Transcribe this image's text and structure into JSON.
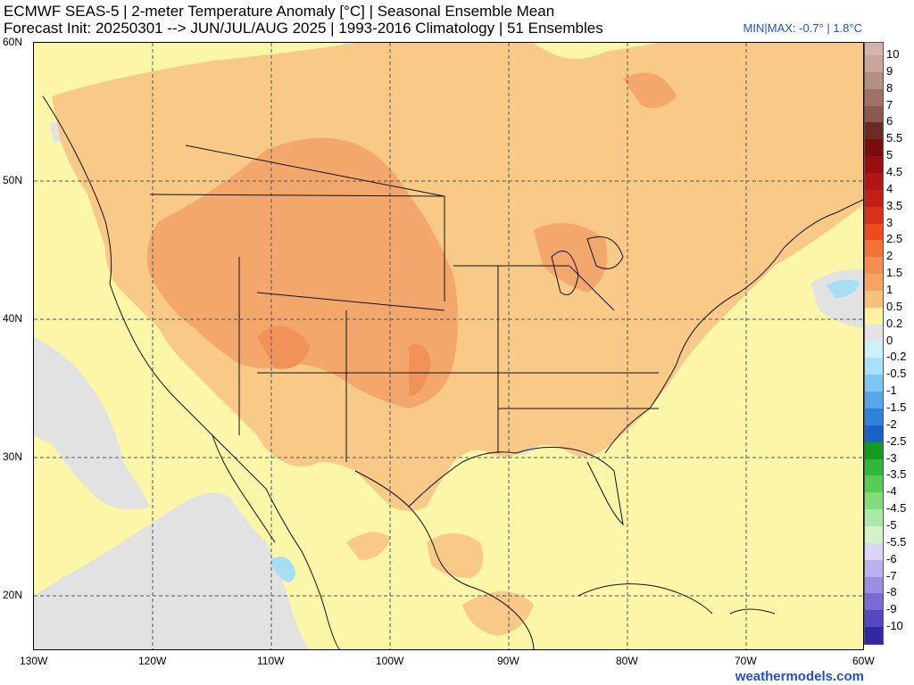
{
  "title": {
    "line1": "ECMWF SEAS-5 | 2-meter Temperature Anomaly [°C] | Seasonal Ensemble Mean",
    "line2": "Forecast Init: 20250301 --> JUN/JUL/AUG 2025  | 1993-2016 Climatology | 51 Ensembles",
    "minmax": "MIN|MAX: -0.7° | 1.8°C"
  },
  "latitude_labels": [
    "60N",
    "50N",
    "40N",
    "30N",
    "20N"
  ],
  "longitude_labels": [
    "130W",
    "120W",
    "110W",
    "100W",
    "90W",
    "80W",
    "70W",
    "60W"
  ],
  "colorbar": {
    "labels": [
      "10",
      "9",
      "8",
      "7",
      "6",
      "5.5",
      "5",
      "4.5",
      "4",
      "3.5",
      "3",
      "2.5",
      "2",
      "1.5",
      "1",
      "0.5",
      "0.2",
      "0",
      "-0.2",
      "-0.5",
      "-1",
      "-1.5",
      "-2",
      "-2.5",
      "-3",
      "-3.5",
      "-4",
      "-4.5",
      "-5",
      "-5.5",
      "-6",
      "-7",
      "-8",
      "-9",
      "-10"
    ],
    "colors": [
      "#c9a59b",
      "#b78e82",
      "#a07266",
      "#8b5a4f",
      "#6b2a24",
      "#7a0c0c",
      "#990e0e",
      "#b01616",
      "#c41f15",
      "#d9301a",
      "#ee4a1e",
      "#f4703a",
      "#f48d52",
      "#f5a463",
      "#f7c07c",
      "#fdf3a0",
      "#e3e3e3",
      "#cdf0fa",
      "#a7e0f8",
      "#7ec6f2",
      "#56a6e8",
      "#2f82db",
      "#1a62c6",
      "#149a1c",
      "#2fb83a",
      "#56cc55",
      "#82dd7d",
      "#ade9a6",
      "#d1f3c9",
      "#dcd4f6",
      "#bdb0ef",
      "#9c8ee3",
      "#7a6ad4",
      "#5747c0",
      "#3427a6"
    ],
    "top_color": "#d3b4ab"
  },
  "map": {
    "anomaly_colors": {
      "near_zero": "#e2e2e2",
      "slightly_negative": "#a6dff5",
      "warm_0_2": "#fbf6a8",
      "warm_0_5": "#f8c987",
      "warm_1": "#f4a76d",
      "warm_1_5": "#f1925a"
    },
    "grid_style": "dashed"
  },
  "credit": "weathermodels.com"
}
